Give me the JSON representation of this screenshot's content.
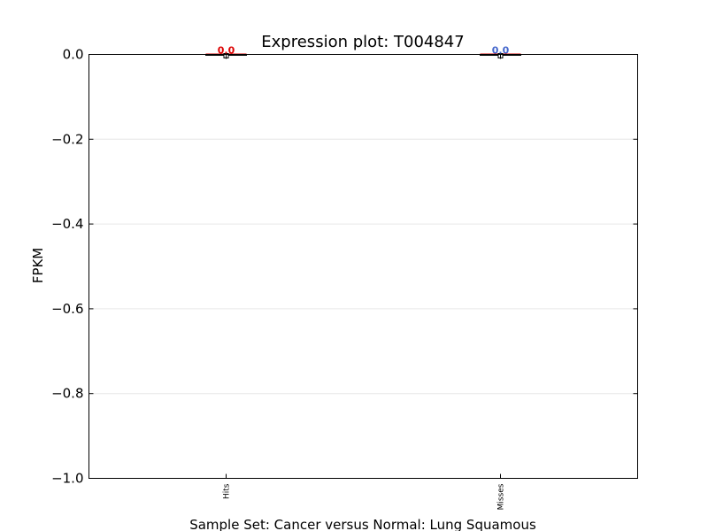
{
  "chart_data": {
    "type": "box",
    "title": "Expression plot: T004847",
    "xlabel": "Sample Set: Cancer versus Normal: Lung Squamous",
    "ylabel": "FPKM",
    "ylim": [
      -1.0,
      0.0
    ],
    "yticks": [
      0.0,
      -0.2,
      -0.4,
      -0.6,
      -0.8,
      -1.0
    ],
    "ytick_labels": [
      "0.0",
      "−0.2",
      "−0.4",
      "−0.6",
      "−0.8",
      "−1.0"
    ],
    "grid": true,
    "categories": [
      "Hits",
      "Misses"
    ],
    "series": [
      {
        "category": "Hits",
        "min": 0.0,
        "q1": 0.0,
        "median": 0.0,
        "q3": 0.0,
        "max": 0.0,
        "mean": 0.0,
        "mean_label": "0.0",
        "label_color": "#dd0000"
      },
      {
        "category": "Misses",
        "min": 0.0,
        "q1": 0.0,
        "median": 0.0,
        "q3": 0.0,
        "max": 0.0,
        "mean": 0.0,
        "mean_label": "0.0",
        "label_color": "#4466cc"
      }
    ]
  }
}
